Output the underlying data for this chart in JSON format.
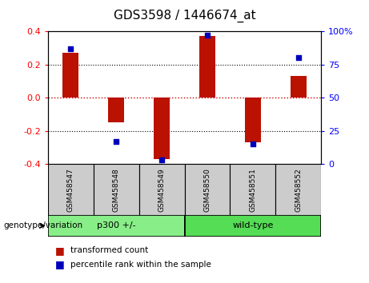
{
  "title": "GDS3598 / 1446674_at",
  "samples": [
    "GSM458547",
    "GSM458548",
    "GSM458549",
    "GSM458550",
    "GSM458551",
    "GSM458552"
  ],
  "bar_values": [
    0.27,
    -0.15,
    -0.37,
    0.37,
    -0.27,
    0.13
  ],
  "percentile_values": [
    87,
    17,
    3,
    97,
    15,
    80
  ],
  "ylim_left": [
    -0.4,
    0.4
  ],
  "ylim_right": [
    0,
    100
  ],
  "yticks_left": [
    -0.4,
    -0.2,
    0.0,
    0.2,
    0.4
  ],
  "yticks_right": [
    0,
    25,
    50,
    75,
    100
  ],
  "bar_color": "#bb1100",
  "dot_color": "#0000bb",
  "groups": [
    {
      "label": "p300 +/-",
      "n_samples": 3,
      "color": "#88ee88"
    },
    {
      "label": "wild-type",
      "n_samples": 3,
      "color": "#55dd55"
    }
  ],
  "genotype_label": "genotype/variation",
  "legend_bar_label": "transformed count",
  "legend_dot_label": "percentile rank within the sample",
  "background_color": "#ffffff",
  "zero_line_color": "#cc0000",
  "title_fontsize": 11,
  "bar_width": 0.35
}
